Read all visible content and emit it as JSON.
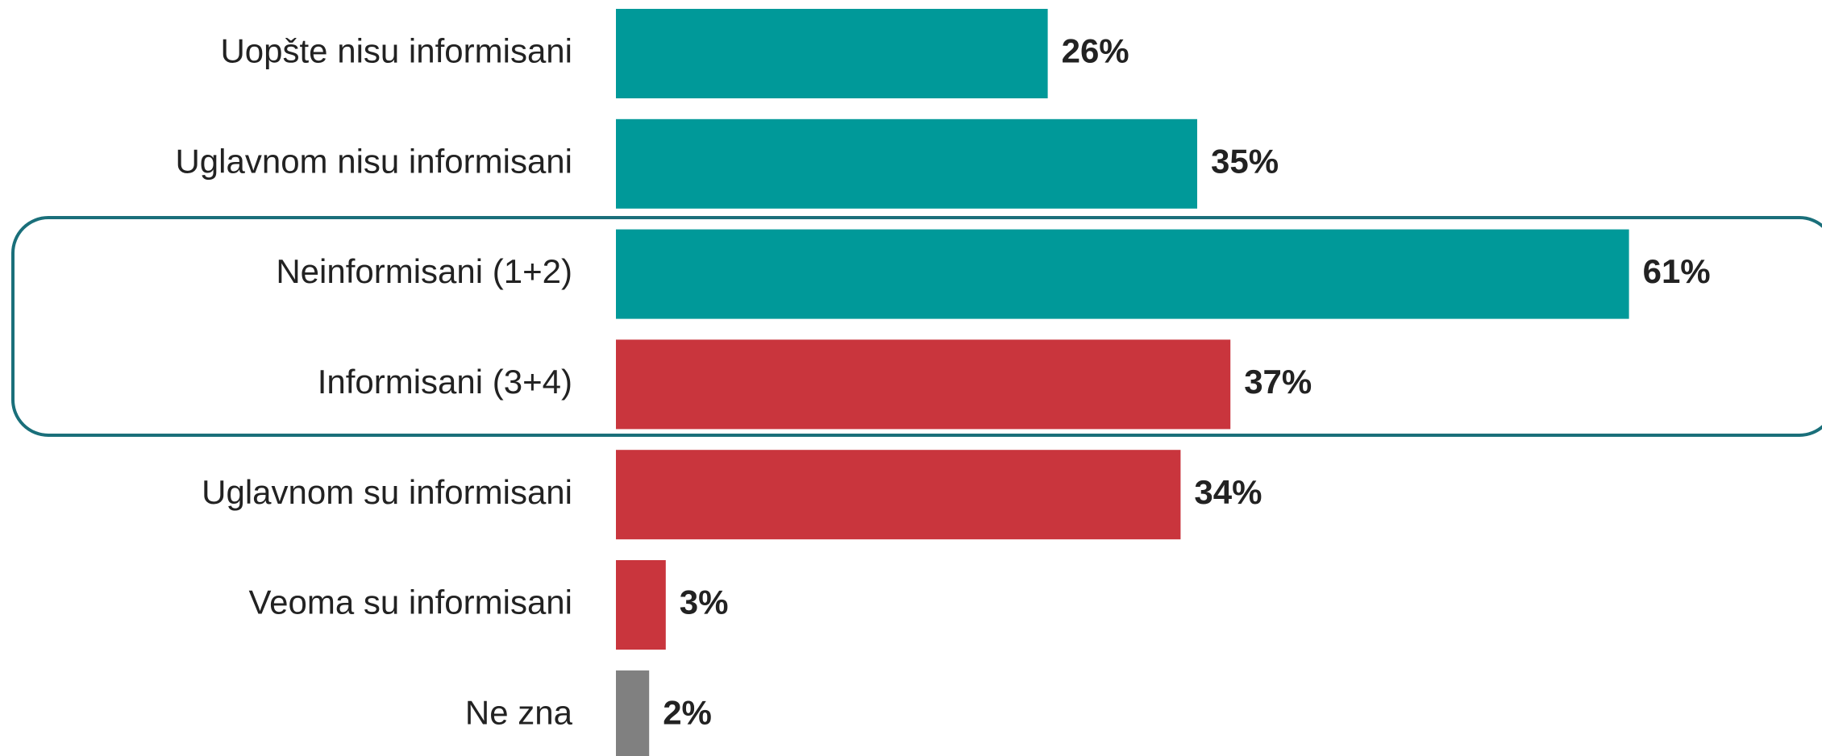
{
  "chart_data": {
    "type": "bar",
    "categories": [
      "Uopšte nisu informisani",
      "Uglavnom nisu informisani",
      "Neinformisani (1+2)",
      "Informisani (3+4)",
      "Uglavnom su informisani",
      "Veoma su informisani",
      "Ne zna"
    ],
    "values": [
      26,
      35,
      61,
      37,
      34,
      3,
      2
    ],
    "value_labels": [
      "26%",
      "35%",
      "61%",
      "37%",
      "34%",
      "3%",
      "2%"
    ],
    "colors": [
      "#009999",
      "#009999",
      "#009999",
      "#c9353d",
      "#c9353d",
      "#c9353d",
      "#808080"
    ]
  }
}
